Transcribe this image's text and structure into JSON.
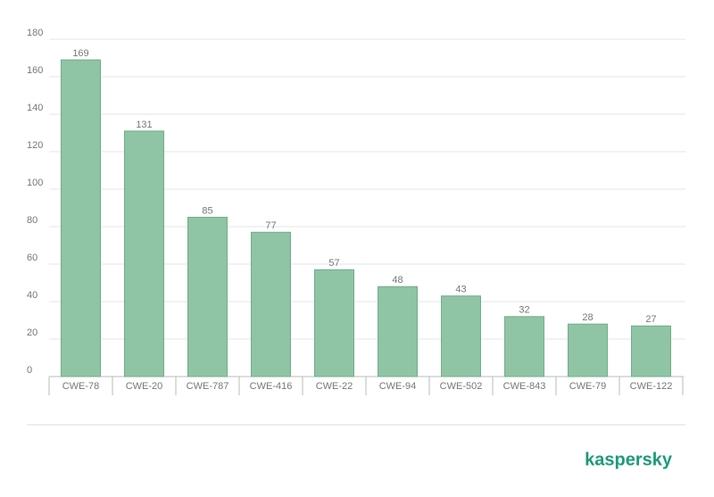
{
  "chart_data": {
    "type": "bar",
    "categories": [
      "CWE-78",
      "CWE-20",
      "CWE-787",
      "CWE-416",
      "CWE-22",
      "CWE-94",
      "CWE-502",
      "CWE-843",
      "CWE-79",
      "CWE-122"
    ],
    "values": [
      169,
      131,
      85,
      77,
      57,
      48,
      43,
      32,
      28,
      27
    ],
    "color": "#8fc4a4",
    "ylim": [
      0,
      180
    ],
    "yticks": [
      0,
      20,
      40,
      60,
      80,
      100,
      120,
      140,
      160,
      180
    ],
    "grid": true
  },
  "logo": "kaspersky"
}
